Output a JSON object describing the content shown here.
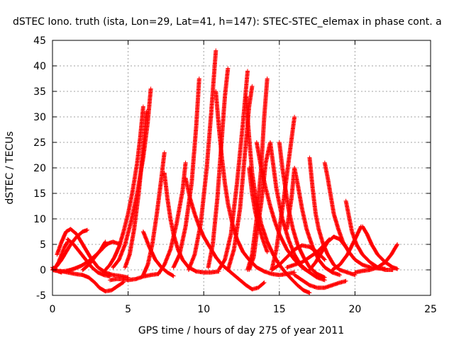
{
  "chart_data": {
    "type": "scatter",
    "title": "dSTEC Iono. truth (ista, Lon=29, Lat=41, h=147): STEC-STEC_elemax in phase cont. a",
    "xlabel": "GPS time / hours of day 275 of year 2011",
    "ylabel": "dSTEC / TECUs",
    "xlim": [
      0,
      25
    ],
    "ylim": [
      -5,
      45
    ],
    "xticks": [
      0,
      5,
      10,
      15,
      20,
      25
    ],
    "yticks": [
      -5,
      0,
      5,
      10,
      15,
      20,
      25,
      30,
      35,
      40,
      45
    ],
    "grid": true,
    "legend": "none",
    "marker": "plus",
    "color": "#ff0000",
    "arcs": [
      {
        "x": [
          0.0,
          0.1,
          0.25,
          0.4,
          0.6
        ],
        "y": [
          0.5,
          0.3,
          0.0,
          -0.3,
          -0.5
        ]
      },
      {
        "x": [
          0.0,
          0.3,
          0.6,
          0.9,
          1.2,
          1.5,
          1.9,
          2.3,
          2.6,
          2.9,
          3.2,
          3.4,
          3.7,
          4.0,
          4.5
        ],
        "y": [
          0.0,
          -0.2,
          -0.3,
          -0.2,
          0.0,
          0.3,
          0.8,
          1.5,
          2.2,
          3.0,
          3.8,
          4.5,
          5.2,
          5.5,
          5.0
        ]
      },
      {
        "x": [
          0.0,
          0.2,
          0.4,
          0.6,
          0.8,
          1.0
        ],
        "y": [
          0.0,
          0.5,
          1.5,
          3.0,
          4.5,
          5.5
        ]
      },
      {
        "x": [
          0.0,
          0.3,
          0.6,
          0.9,
          1.2,
          1.6,
          2.0,
          2.3
        ],
        "y": [
          0.0,
          0.8,
          2.0,
          3.5,
          5.0,
          6.5,
          7.5,
          7.8
        ]
      },
      {
        "x": [
          0.3,
          0.6,
          0.9,
          1.2,
          1.6,
          2.0,
          2.5,
          3.0,
          3.5,
          4.0,
          4.5,
          5.0
        ],
        "y": [
          3.0,
          5.5,
          7.5,
          8.0,
          7.0,
          5.0,
          2.5,
          0.5,
          -0.5,
          -1.0,
          -1.2,
          -1.5
        ]
      },
      {
        "x": [
          1.0,
          1.4,
          1.8,
          2.2,
          2.6,
          3.0,
          3.4,
          3.8
        ],
        "y": [
          6.0,
          5.0,
          3.5,
          2.0,
          0.5,
          -0.5,
          -1.0,
          -1.3
        ]
      },
      {
        "x": [
          0.5,
          1.0,
          1.5,
          2.0,
          2.4,
          2.8,
          3.1,
          3.5,
          3.9,
          4.3,
          4.7
        ],
        "y": [
          -0.2,
          -0.5,
          -0.8,
          -1.0,
          -1.5,
          -2.5,
          -3.5,
          -4.2,
          -4.0,
          -3.2,
          -2.4
        ]
      },
      {
        "x": [
          2.0,
          2.4,
          2.8,
          3.2,
          3.5
        ],
        "y": [
          0.0,
          1.0,
          2.5,
          4.0,
          5.5
        ]
      },
      {
        "x": [
          3.8,
          4.2,
          4.6,
          5.0,
          5.5,
          6.0,
          6.5,
          7.0
        ],
        "y": [
          -2.0,
          -1.8,
          -1.8,
          -2.0,
          -1.8,
          -1.3,
          -1.0,
          -0.8
        ]
      },
      {
        "x": [
          3.5,
          3.8,
          4.1,
          4.4,
          4.7,
          5.0,
          5.3,
          5.6,
          5.8,
          6.0
        ],
        "y": [
          0.0,
          1.0,
          2.5,
          4.5,
          7.5,
          11.0,
          15.5,
          21.0,
          26.0,
          32.0
        ]
      },
      {
        "x": [
          4.0,
          4.4,
          4.8,
          5.2,
          5.6,
          6.0,
          6.3,
          6.5
        ],
        "y": [
          0.5,
          2.0,
          5.0,
          9.5,
          15.0,
          22.0,
          29.0,
          35.5
        ]
      },
      {
        "x": [
          4.8,
          5.1,
          5.4,
          5.7,
          6.0,
          6.2
        ],
        "y": [
          0.5,
          3.0,
          8.0,
          15.0,
          24.0,
          31.0
        ]
      },
      {
        "x": [
          6.0,
          6.4,
          6.8,
          7.2,
          7.6,
          8.0
        ],
        "y": [
          7.5,
          4.5,
          2.0,
          0.5,
          -0.5,
          -1.2
        ]
      },
      {
        "x": [
          6.0,
          6.3,
          6.6,
          6.9,
          7.2,
          7.4
        ],
        "y": [
          -1.0,
          1.0,
          5.0,
          11.0,
          18.0,
          23.0
        ]
      },
      {
        "x": [
          7.4,
          7.6,
          7.8,
          8.0,
          8.3,
          8.6,
          9.0,
          9.5,
          10.0,
          10.5,
          11.0
        ],
        "y": [
          19.0,
          14.0,
          10.0,
          7.0,
          4.0,
          2.0,
          0.5,
          -0.3,
          -0.5,
          -0.5,
          -0.3
        ]
      },
      {
        "x": [
          7.0,
          7.4,
          7.8,
          8.2,
          8.6,
          8.8
        ],
        "y": [
          -0.8,
          1.0,
          4.0,
          9.0,
          15.5,
          21.0
        ]
      },
      {
        "x": [
          8.8,
          9.1,
          9.4,
          9.7,
          10.0,
          10.4,
          10.8,
          11.2,
          11.6,
          12.0,
          12.4,
          12.8,
          13.2,
          13.6,
          14.0
        ],
        "y": [
          18.0,
          14.0,
          11.0,
          8.5,
          6.5,
          4.5,
          2.5,
          1.0,
          0.0,
          -1.0,
          -2.0,
          -3.0,
          -3.8,
          -3.5,
          -2.5
        ]
      },
      {
        "x": [
          8.0,
          8.4,
          8.8,
          9.2,
          9.5,
          9.7
        ],
        "y": [
          0.5,
          3.0,
          8.5,
          17.0,
          28.0,
          37.5
        ]
      },
      {
        "x": [
          9.0,
          9.4,
          9.8,
          10.2,
          10.5,
          10.8
        ],
        "y": [
          0.0,
          3.0,
          9.0,
          20.0,
          31.0,
          43.0
        ]
      },
      {
        "x": [
          10.8,
          11.0,
          11.2,
          11.4,
          11.6,
          11.9,
          12.2,
          12.6,
          13.0,
          13.5,
          14.0,
          14.5,
          15.0,
          15.5,
          16.0
        ],
        "y": [
          35.0,
          28.0,
          22.0,
          17.0,
          13.0,
          9.0,
          6.0,
          3.5,
          2.0,
          0.5,
          -0.3,
          -0.8,
          -1.0,
          -0.8,
          -0.5
        ]
      },
      {
        "x": [
          10.3,
          10.6,
          10.9,
          11.2,
          11.4,
          11.6
        ],
        "y": [
          0.5,
          5.0,
          14.0,
          26.0,
          34.0,
          39.5
        ]
      },
      {
        "x": [
          11.0,
          11.4,
          11.8,
          12.2,
          12.6,
          12.9
        ],
        "y": [
          0.0,
          2.0,
          7.0,
          17.0,
          29.0,
          39.0
        ]
      },
      {
        "x": [
          11.6,
          12.0,
          12.4,
          12.7,
          13.0,
          13.2
        ],
        "y": [
          0.0,
          4.0,
          12.0,
          22.0,
          32.0,
          36.0
        ]
      },
      {
        "x": [
          12.8,
          13.0,
          13.2,
          13.5,
          13.8,
          14.2,
          14.6,
          15.0,
          15.4,
          15.8,
          16.2,
          16.6,
          17.0
        ],
        "y": [
          34.0,
          26.0,
          19.0,
          13.0,
          9.0,
          5.5,
          3.0,
          1.0,
          -0.5,
          -1.8,
          -3.0,
          -4.0,
          -4.5
        ]
      },
      {
        "x": [
          13.0,
          13.2,
          13.4,
          13.6,
          13.9,
          14.2
        ],
        "y": [
          20.0,
          15.0,
          11.5,
          9.0,
          6.0,
          3.5
        ]
      },
      {
        "x": [
          12.9,
          13.2,
          13.5,
          13.8,
          14.0,
          14.2
        ],
        "y": [
          0.0,
          3.0,
          10.0,
          20.0,
          30.0,
          37.5
        ]
      },
      {
        "x": [
          13.5,
          13.8,
          14.1,
          14.4,
          14.7,
          15.0,
          15.5,
          16.0,
          16.5,
          17.0,
          17.5,
          18.0
        ],
        "y": [
          25.0,
          20.0,
          16.0,
          12.5,
          9.5,
          7.0,
          4.0,
          2.0,
          0.5,
          -0.5,
          -1.5,
          -2.0
        ]
      },
      {
        "x": [
          13.0,
          13.3,
          13.5,
          13.8,
          14.1,
          14.4,
          14.8,
          15.2,
          15.6,
          16.0,
          16.4,
          16.8
        ],
        "y": [
          0.0,
          2.5,
          7.0,
          13.0,
          21.0,
          25.0,
          16.0,
          10.0,
          6.0,
          3.0,
          1.0,
          0.0
        ]
      },
      {
        "x": [
          14.5,
          14.8,
          15.0,
          15.3,
          15.6,
          16.0
        ],
        "y": [
          0.0,
          4.0,
          8.0,
          14.0,
          21.0,
          30.0
        ]
      },
      {
        "x": [
          15.0,
          15.2,
          15.4,
          15.6,
          15.9,
          16.2,
          16.6,
          17.0,
          17.5,
          18.0
        ],
        "y": [
          25.0,
          20.0,
          16.0,
          12.0,
          8.0,
          5.0,
          2.5,
          0.5,
          -0.8,
          -1.5
        ]
      },
      {
        "x": [
          15.5,
          15.8,
          16.0,
          16.2,
          16.5,
          16.8,
          17.2,
          17.6,
          18.0,
          18.5,
          19.0
        ],
        "y": [
          8.0,
          14.0,
          20.0,
          17.0,
          12.0,
          8.0,
          4.5,
          2.0,
          0.5,
          -0.5,
          -1.0
        ]
      },
      {
        "x": [
          17.0,
          17.2,
          17.4,
          17.6,
          17.9,
          18.2,
          18.6,
          19.0,
          19.5,
          20.0
        ],
        "y": [
          22.0,
          16.0,
          11.0,
          8.0,
          5.0,
          3.0,
          1.0,
          0.0,
          -0.5,
          -1.0
        ]
      },
      {
        "x": [
          18.0,
          18.2,
          18.4,
          18.6,
          18.9,
          19.2,
          19.6,
          20.0,
          20.5,
          21.0,
          21.5,
          22.0
        ],
        "y": [
          21.0,
          18.0,
          14.5,
          11.0,
          8.0,
          5.5,
          3.5,
          2.0,
          1.0,
          0.5,
          0.3,
          0.2
        ]
      },
      {
        "x": [
          19.4,
          19.6,
          19.8,
          20.1,
          20.5,
          21.0,
          21.5,
          22.0,
          22.5
        ],
        "y": [
          13.5,
          10.5,
          7.5,
          5.0,
          3.0,
          1.5,
          0.5,
          0.0,
          0.0
        ]
      },
      {
        "x": [
          20.5,
          20.8,
          21.1,
          21.5,
          22.0,
          22.5,
          22.8
        ],
        "y": [
          8.5,
          7.0,
          5.0,
          3.0,
          1.5,
          0.5,
          0.2
        ]
      },
      {
        "x": [
          20.0,
          20.5,
          21.0,
          21.5,
          22.0,
          22.4,
          22.8
        ],
        "y": [
          -0.5,
          -0.2,
          0.0,
          0.5,
          1.5,
          3.0,
          5.0
        ]
      },
      {
        "x": [
          16.0,
          16.5,
          17.0,
          17.5,
          18.0,
          18.5,
          19.0,
          19.4
        ],
        "y": [
          -1.0,
          -2.0,
          -3.0,
          -3.5,
          -3.5,
          -3.0,
          -2.5,
          -2.2
        ]
      },
      {
        "x": [
          17.0,
          17.4,
          17.8,
          18.2,
          18.6,
          19.0,
          19.4
        ],
        "y": [
          0.0,
          1.5,
          3.5,
          5.5,
          6.5,
          6.0,
          4.5
        ]
      },
      {
        "x": [
          15.5,
          16.0,
          16.5,
          17.0,
          17.5,
          18.0,
          18.3
        ],
        "y": [
          0.5,
          1.0,
          1.5,
          2.5,
          3.5,
          5.0,
          6.0
        ]
      },
      {
        "x": [
          18.5,
          19.0,
          19.5,
          20.0,
          20.4
        ],
        "y": [
          0.0,
          1.0,
          3.0,
          6.0,
          8.5
        ]
      },
      {
        "x": [
          14.5,
          15.0,
          15.5,
          16.0,
          16.5,
          17.0,
          17.5,
          18.0
        ],
        "y": [
          0.0,
          1.0,
          2.5,
          4.0,
          4.8,
          4.5,
          3.5,
          2.0
        ]
      }
    ]
  }
}
